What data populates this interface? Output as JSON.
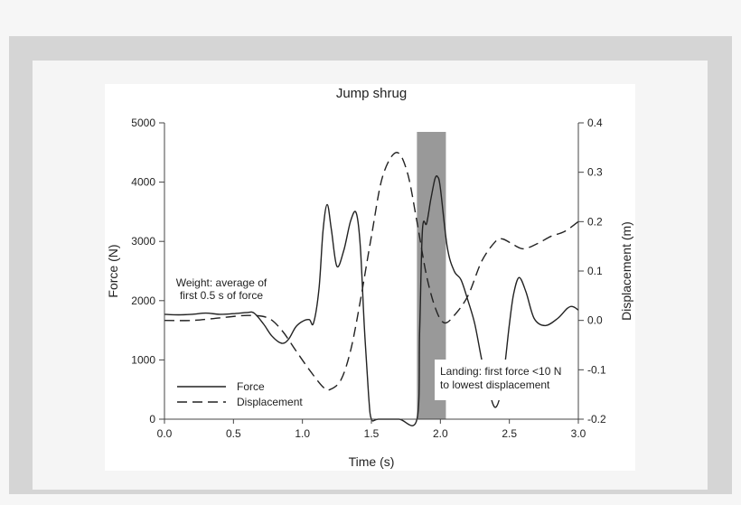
{
  "chart_data": {
    "type": "line",
    "title": "Jump shrug",
    "xlabel": "Time (s)",
    "ylabel": "Force (N)",
    "y2label": "Displacement (m)",
    "xlim": [
      0.0,
      3.0
    ],
    "ylim": [
      0,
      5000
    ],
    "y2lim": [
      -0.2,
      0.4
    ],
    "x_ticks": [
      "0.0",
      "0.5",
      "1.0",
      "1.5",
      "2.0",
      "2.5",
      "3.0"
    ],
    "y_ticks": [
      "0",
      "1000",
      "2000",
      "3000",
      "4000",
      "5000"
    ],
    "y2_ticks": [
      "-0.2",
      "-0.1",
      "0.0",
      "0.1",
      "0.2",
      "0.3",
      "0.4"
    ],
    "grid": false,
    "legend_position": "lower left",
    "series": [
      {
        "name": "Force",
        "axis": "left",
        "style": "solid",
        "x": [
          0.0,
          0.1,
          0.2,
          0.3,
          0.4,
          0.5,
          0.6,
          0.65,
          0.72,
          0.78,
          0.85,
          0.9,
          0.95,
          1.0,
          1.05,
          1.08,
          1.12,
          1.15,
          1.18,
          1.21,
          1.25,
          1.3,
          1.35,
          1.39,
          1.42,
          1.45,
          1.48,
          1.5,
          1.55,
          1.7,
          1.83,
          1.85,
          1.87,
          1.9,
          1.93,
          1.96,
          1.98,
          2.0,
          2.05,
          2.1,
          2.15,
          2.2,
          2.25,
          2.3,
          2.35,
          2.4,
          2.45,
          2.5,
          2.53,
          2.57,
          2.62,
          2.68,
          2.76,
          2.85,
          2.92,
          2.96,
          3.0
        ],
        "values": [
          1770,
          1760,
          1770,
          1790,
          1770,
          1780,
          1800,
          1790,
          1600,
          1400,
          1280,
          1350,
          1550,
          1650,
          1680,
          1620,
          2200,
          3200,
          3620,
          3200,
          2580,
          2850,
          3350,
          3480,
          2900,
          1500,
          400,
          0,
          0,
          0,
          0,
          1500,
          3200,
          3300,
          3700,
          4050,
          4090,
          3900,
          2900,
          2500,
          2350,
          2000,
          1600,
          1000,
          500,
          200,
          600,
          1600,
          2100,
          2390,
          2150,
          1700,
          1580,
          1700,
          1870,
          1900,
          1840
        ]
      },
      {
        "name": "Displacement",
        "axis": "right",
        "style": "dashed",
        "x": [
          0.0,
          0.2,
          0.4,
          0.6,
          0.75,
          0.85,
          0.95,
          1.05,
          1.15,
          1.2,
          1.28,
          1.35,
          1.42,
          1.5,
          1.58,
          1.68,
          1.76,
          1.83,
          1.9,
          1.97,
          2.03,
          2.1,
          2.2,
          2.3,
          2.4,
          2.45,
          2.52,
          2.6,
          2.7,
          2.8,
          2.9,
          3.0
        ],
        "values": [
          0.0,
          0.0,
          0.005,
          0.01,
          0.005,
          -0.02,
          -0.06,
          -0.1,
          -0.135,
          -0.14,
          -0.12,
          -0.06,
          0.04,
          0.17,
          0.29,
          0.34,
          0.3,
          0.2,
          0.09,
          0.02,
          -0.005,
          0.01,
          0.05,
          0.12,
          0.16,
          0.165,
          0.155,
          0.145,
          0.155,
          0.17,
          0.18,
          0.2
        ]
      }
    ],
    "annotations": [
      {
        "text": [
          "Weight: average of",
          "first 0.5 s of force"
        ],
        "x": 0.6,
        "y": 2150
      },
      {
        "text": [
          "Landing: first force <10 N",
          "to lowest displacement"
        ],
        "x": 2.55,
        "y": 800
      },
      {
        "type": "shaded_region",
        "x_start": 1.83,
        "x_end": 2.04,
        "color": "#999999"
      }
    ]
  },
  "colors": {
    "page_bg": "#f6f6f6",
    "frame": "#d5d5d5",
    "inner": "#f5f5f5",
    "plot_bg": "#ffffff",
    "line": "#222222",
    "shade": "#999999",
    "axis": "#444444"
  }
}
